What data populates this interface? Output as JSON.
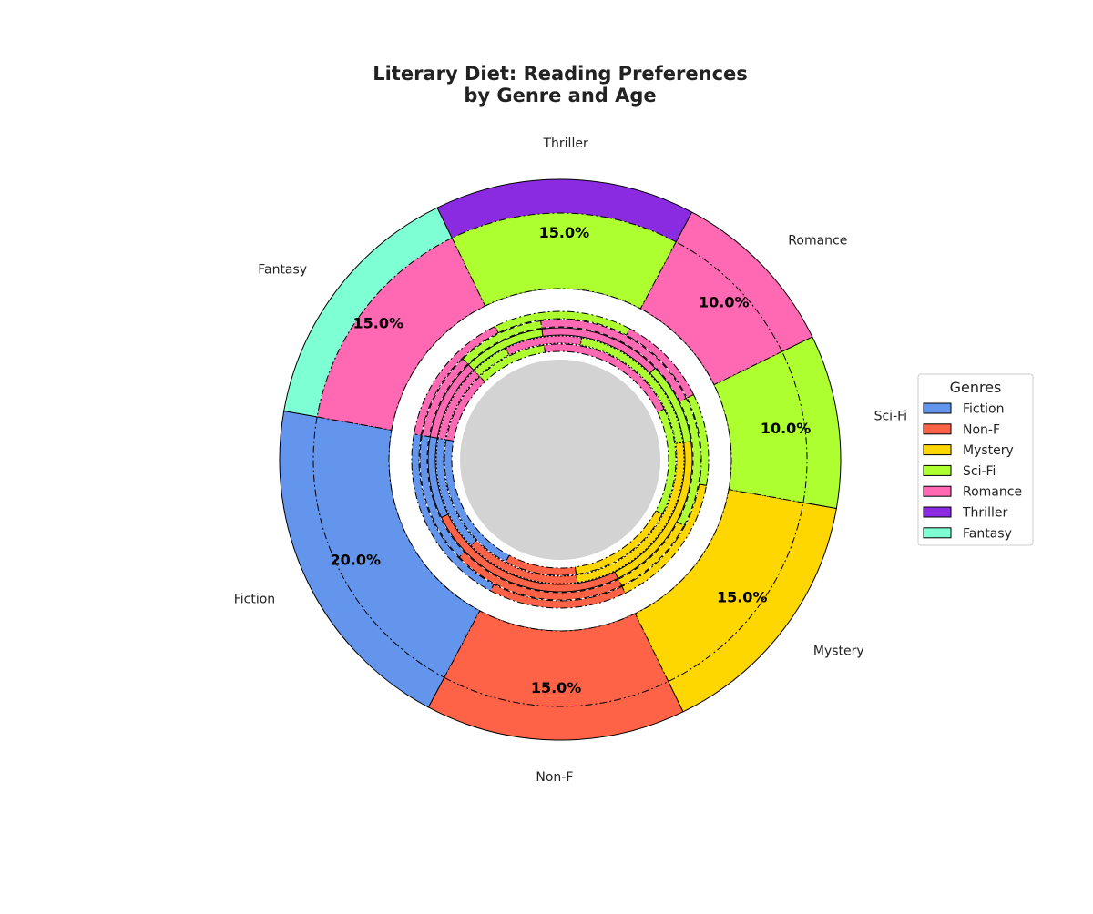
{
  "chart_data": {
    "type": "pie",
    "title_line1": "Literary Diet: Reading Preferences",
    "title_line2": "by Genre and Age",
    "legend_title": "Genres",
    "legend_position": "right",
    "start_angle_deg": 170,
    "outer_ring": {
      "categories": [
        "Fiction",
        "Non-F",
        "Mystery",
        "Sci-Fi",
        "Romance",
        "Thriller",
        "Fantasy"
      ],
      "values": [
        20,
        15,
        15,
        10,
        10,
        15,
        15
      ],
      "colors": [
        "#6495ED",
        "#FF6347",
        "#FFD700",
        "#ADFF2F",
        "#FF69B4",
        "#8A2BE2",
        "#7FFFD4"
      ]
    },
    "percent_labels": [
      "20.0%",
      "15.0%",
      "15.0%",
      "10.0%",
      "10.0%",
      "15.0%",
      "15.0%"
    ],
    "inner_rings": [
      {
        "values": [
          20,
          15,
          15,
          10,
          10,
          15,
          15
        ],
        "colors": [
          "#6495ED",
          "#FF6347",
          "#FFD700",
          "#ADFF2F",
          "#FF69B4",
          "#ADFF2F",
          "#FF69B4"
        ]
      },
      {
        "values": [
          15,
          20,
          10,
          15,
          20,
          10,
          10
        ],
        "colors": [
          "#6495ED",
          "#FF6347",
          "#FFD700",
          "#ADFF2F",
          "#FF69B4",
          "#ADFF2F",
          "#FF69B4"
        ]
      },
      {
        "values": [
          10,
          25,
          20,
          10,
          15,
          10,
          10
        ],
        "colors": [
          "#6495ED",
          "#FF6347",
          "#FFD700",
          "#ADFF2F",
          "#FF69B4",
          "#ADFF2F",
          "#FF69B4"
        ]
      },
      {
        "values": [
          15,
          15,
          25,
          20,
          10,
          5,
          10
        ],
        "colors": [
          "#6495ED",
          "#FF6347",
          "#FFD700",
          "#ADFF2F",
          "#FF69B4",
          "#ADFF2F",
          "#FF69B4"
        ]
      },
      {
        "values": [
          20,
          10,
          15,
          15,
          20,
          10,
          10
        ],
        "colors": [
          "#6495ED",
          "#FF6347",
          "#FFD700",
          "#ADFF2F",
          "#FF69B4",
          "#ADFF2F",
          "#FF69B4"
        ]
      }
    ],
    "center_color": "#D3D3D3"
  }
}
